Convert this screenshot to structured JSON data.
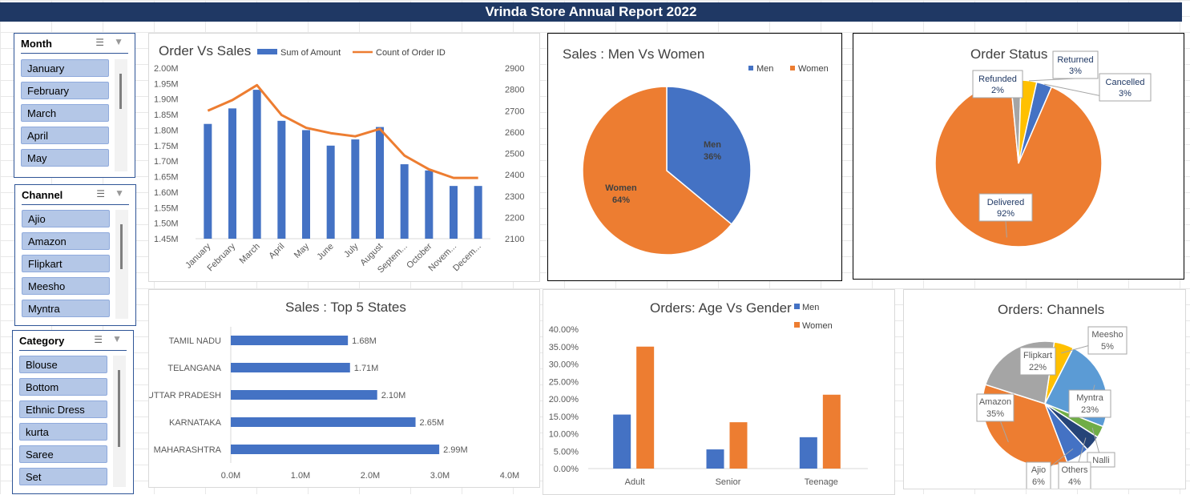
{
  "report_title": "Vrinda Store Annual Report 2022",
  "slicers": {
    "month": {
      "title": "Month",
      "items": [
        "January",
        "February",
        "March",
        "April",
        "May"
      ]
    },
    "channel": {
      "title": "Channel",
      "items": [
        "Ajio",
        "Amazon",
        "Flipkart",
        "Meesho",
        "Myntra"
      ]
    },
    "category": {
      "title": "Category",
      "items": [
        "Blouse",
        "Bottom",
        "Ethnic Dress",
        "kurta",
        "Saree",
        "Set"
      ]
    }
  },
  "icons": {
    "multiselect": "multi-select-icon",
    "clear_filter": "clear-filter-icon"
  },
  "colors": {
    "blue": "#4472c4",
    "orange": "#ed7d31",
    "gray": "#a5a5a5",
    "yellow": "#ffc000",
    "light_blue": "#5b9bd5",
    "green": "#70ad47",
    "navy": "#264478",
    "header": "#1f3864"
  },
  "chart_data": [
    {
      "id": "order_vs_sales",
      "type": "bar",
      "title": "Order Vs Sales",
      "categories": [
        "January",
        "February",
        "March",
        "April",
        "May",
        "June",
        "July",
        "August",
        "Septem...",
        "October",
        "Novem...",
        "Decem..."
      ],
      "series": [
        {
          "name": "Sum of Amount",
          "type": "bar",
          "axis": "left",
          "values": [
            1.82,
            1.87,
            1.93,
            1.83,
            1.8,
            1.75,
            1.77,
            1.81,
            1.69,
            1.67,
            1.62,
            1.62
          ]
        },
        {
          "name": "Count of Order ID",
          "type": "line",
          "axis": "right",
          "values": [
            2700,
            2750,
            2820,
            2680,
            2620,
            2595,
            2580,
            2615,
            2490,
            2425,
            2385,
            2385
          ]
        }
      ],
      "y_left_ticks": [
        "2.00M",
        "1.95M",
        "1.90M",
        "1.85M",
        "1.80M",
        "1.75M",
        "1.70M",
        "1.65M",
        "1.60M",
        "1.55M",
        "1.50M",
        "1.45M"
      ],
      "y_right_ticks": [
        "2900",
        "2800",
        "2700",
        "2600",
        "2500",
        "2400",
        "2300",
        "2200",
        "2100"
      ],
      "ylim_left": [
        1.45,
        2.0
      ],
      "ylim_right": [
        2100,
        2900
      ],
      "legend": "top"
    },
    {
      "id": "men_vs_women",
      "type": "pie",
      "title": "Sales : Men Vs Women",
      "labels": [
        "Men",
        "Women"
      ],
      "values": [
        36,
        64
      ],
      "data_labels": [
        "36%",
        "64%"
      ],
      "legend": "top-right"
    },
    {
      "id": "order_status",
      "type": "pie",
      "title": "Order Status",
      "labels": [
        "Cancelled",
        "Delivered",
        "Refunded",
        "Returned"
      ],
      "values": [
        3,
        92,
        2,
        3
      ],
      "data_labels": [
        "3%",
        "92%",
        "2%",
        "3%"
      ]
    },
    {
      "id": "top_states",
      "type": "bar",
      "orientation": "horizontal",
      "title": "Sales : Top 5 States",
      "categories": [
        "TAMIL NADU",
        "TELANGANA",
        "UTTAR PRADESH",
        "KARNATAKA",
        "MAHARASHTRA"
      ],
      "values": [
        1.68,
        1.71,
        2.1,
        2.65,
        2.99
      ],
      "data_labels": [
        "1.68M",
        "1.71M",
        "2.10M",
        "2.65M",
        "2.99M"
      ],
      "x_ticks": [
        "0.0M",
        "1.0M",
        "2.0M",
        "3.0M",
        "4.0M"
      ],
      "xlim": [
        0,
        4
      ]
    },
    {
      "id": "age_vs_gender",
      "type": "bar",
      "title": "Orders: Age Vs Gender",
      "categories": [
        "Adult",
        "Senior",
        "Teenage"
      ],
      "series": [
        {
          "name": "Men",
          "values": [
            15.5,
            5.5,
            9.0
          ]
        },
        {
          "name": "Women",
          "values": [
            35.0,
            13.3,
            21.2
          ]
        }
      ],
      "y_ticks": [
        "40.00%",
        "35.00%",
        "30.00%",
        "25.00%",
        "20.00%",
        "15.00%",
        "10.00%",
        "5.00%",
        "0.00%"
      ],
      "ylim": [
        0,
        40
      ],
      "legend": "top-right"
    },
    {
      "id": "channels",
      "type": "pie",
      "title": "Orders: Channels",
      "labels": [
        "Meesho",
        "Myntra",
        "Nalli",
        "Others",
        "Ajio",
        "Amazon",
        "Flipkart"
      ],
      "values": [
        5,
        23,
        3,
        4,
        6,
        35,
        22
      ],
      "data_labels": [
        "5%",
        "23%",
        "",
        "4%",
        "6%",
        "35%",
        "22%"
      ]
    }
  ]
}
